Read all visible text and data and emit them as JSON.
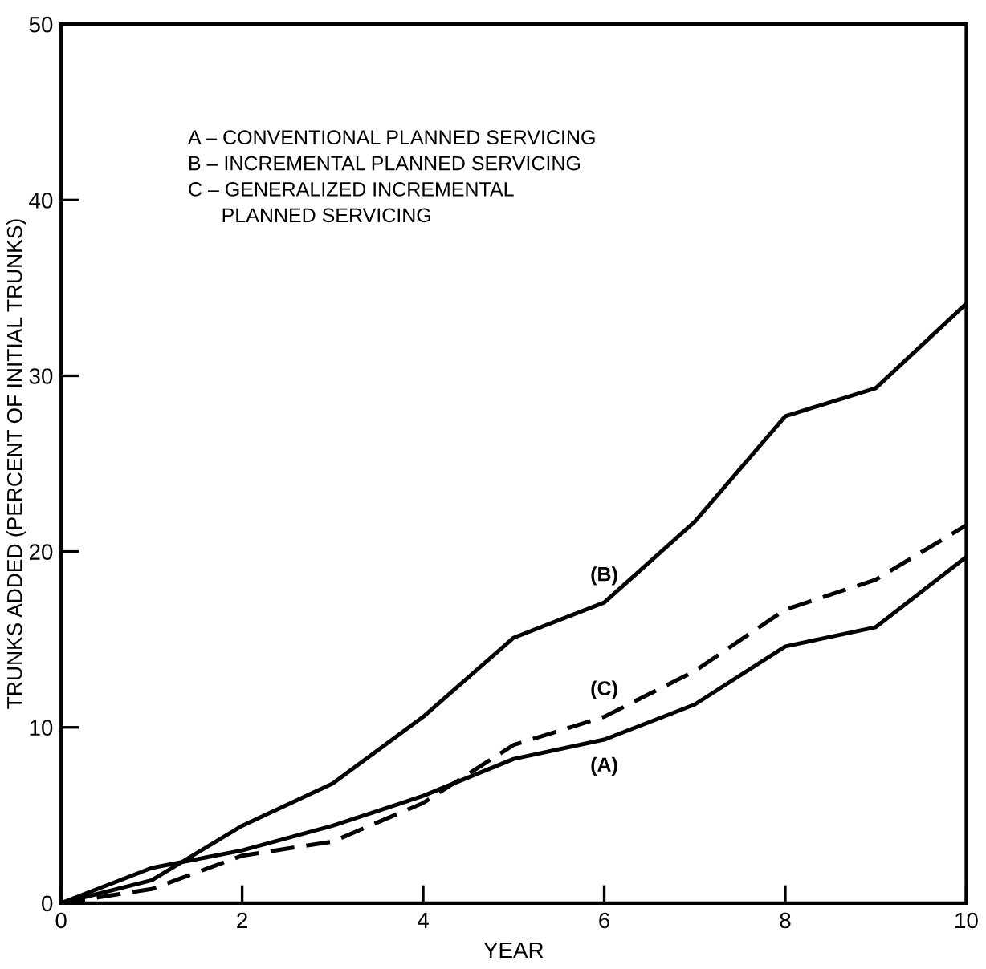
{
  "chart_data": {
    "type": "line",
    "xlabel": "YEAR",
    "ylabel": "TRUNKS ADDED (PERCENT OF INITIAL TRUNKS)",
    "x": [
      0,
      1,
      2,
      3,
      4,
      5,
      6,
      7,
      8,
      9,
      10
    ],
    "series": [
      {
        "name": "(A)",
        "color": "#000000",
        "line_style": "solid",
        "values": [
          0,
          2.0,
          3.0,
          4.4,
          6.1,
          8.2,
          9.3,
          11.3,
          14.6,
          15.7,
          19.7
        ]
      },
      {
        "name": "(B)",
        "color": "#000000",
        "line_style": "solid",
        "values": [
          0,
          1.3,
          4.4,
          6.8,
          10.6,
          15.1,
          17.1,
          21.7,
          27.7,
          29.3,
          34.1
        ]
      },
      {
        "name": "(C)",
        "color": "#000000",
        "line_style": "dashed",
        "values": [
          0,
          0.8,
          2.7,
          3.5,
          5.7,
          9.0,
          10.6,
          13.2,
          16.7,
          18.4,
          21.5
        ]
      }
    ],
    "annotations": [
      "A – CONVENTIONAL PLANNED SERVICING\nB – INCREMENTAL PLANNED SERVICING\nC – GENERALIZED INCREMENTAL\n      PLANNED SERVICING"
    ],
    "xlim": [
      0,
      10
    ],
    "ylim": [
      0,
      50
    ],
    "xticks": [
      0,
      2,
      4,
      6,
      8,
      10
    ],
    "yticks": [
      0,
      10,
      20,
      30,
      40,
      50
    ],
    "grid": false,
    "marker": "none"
  }
}
